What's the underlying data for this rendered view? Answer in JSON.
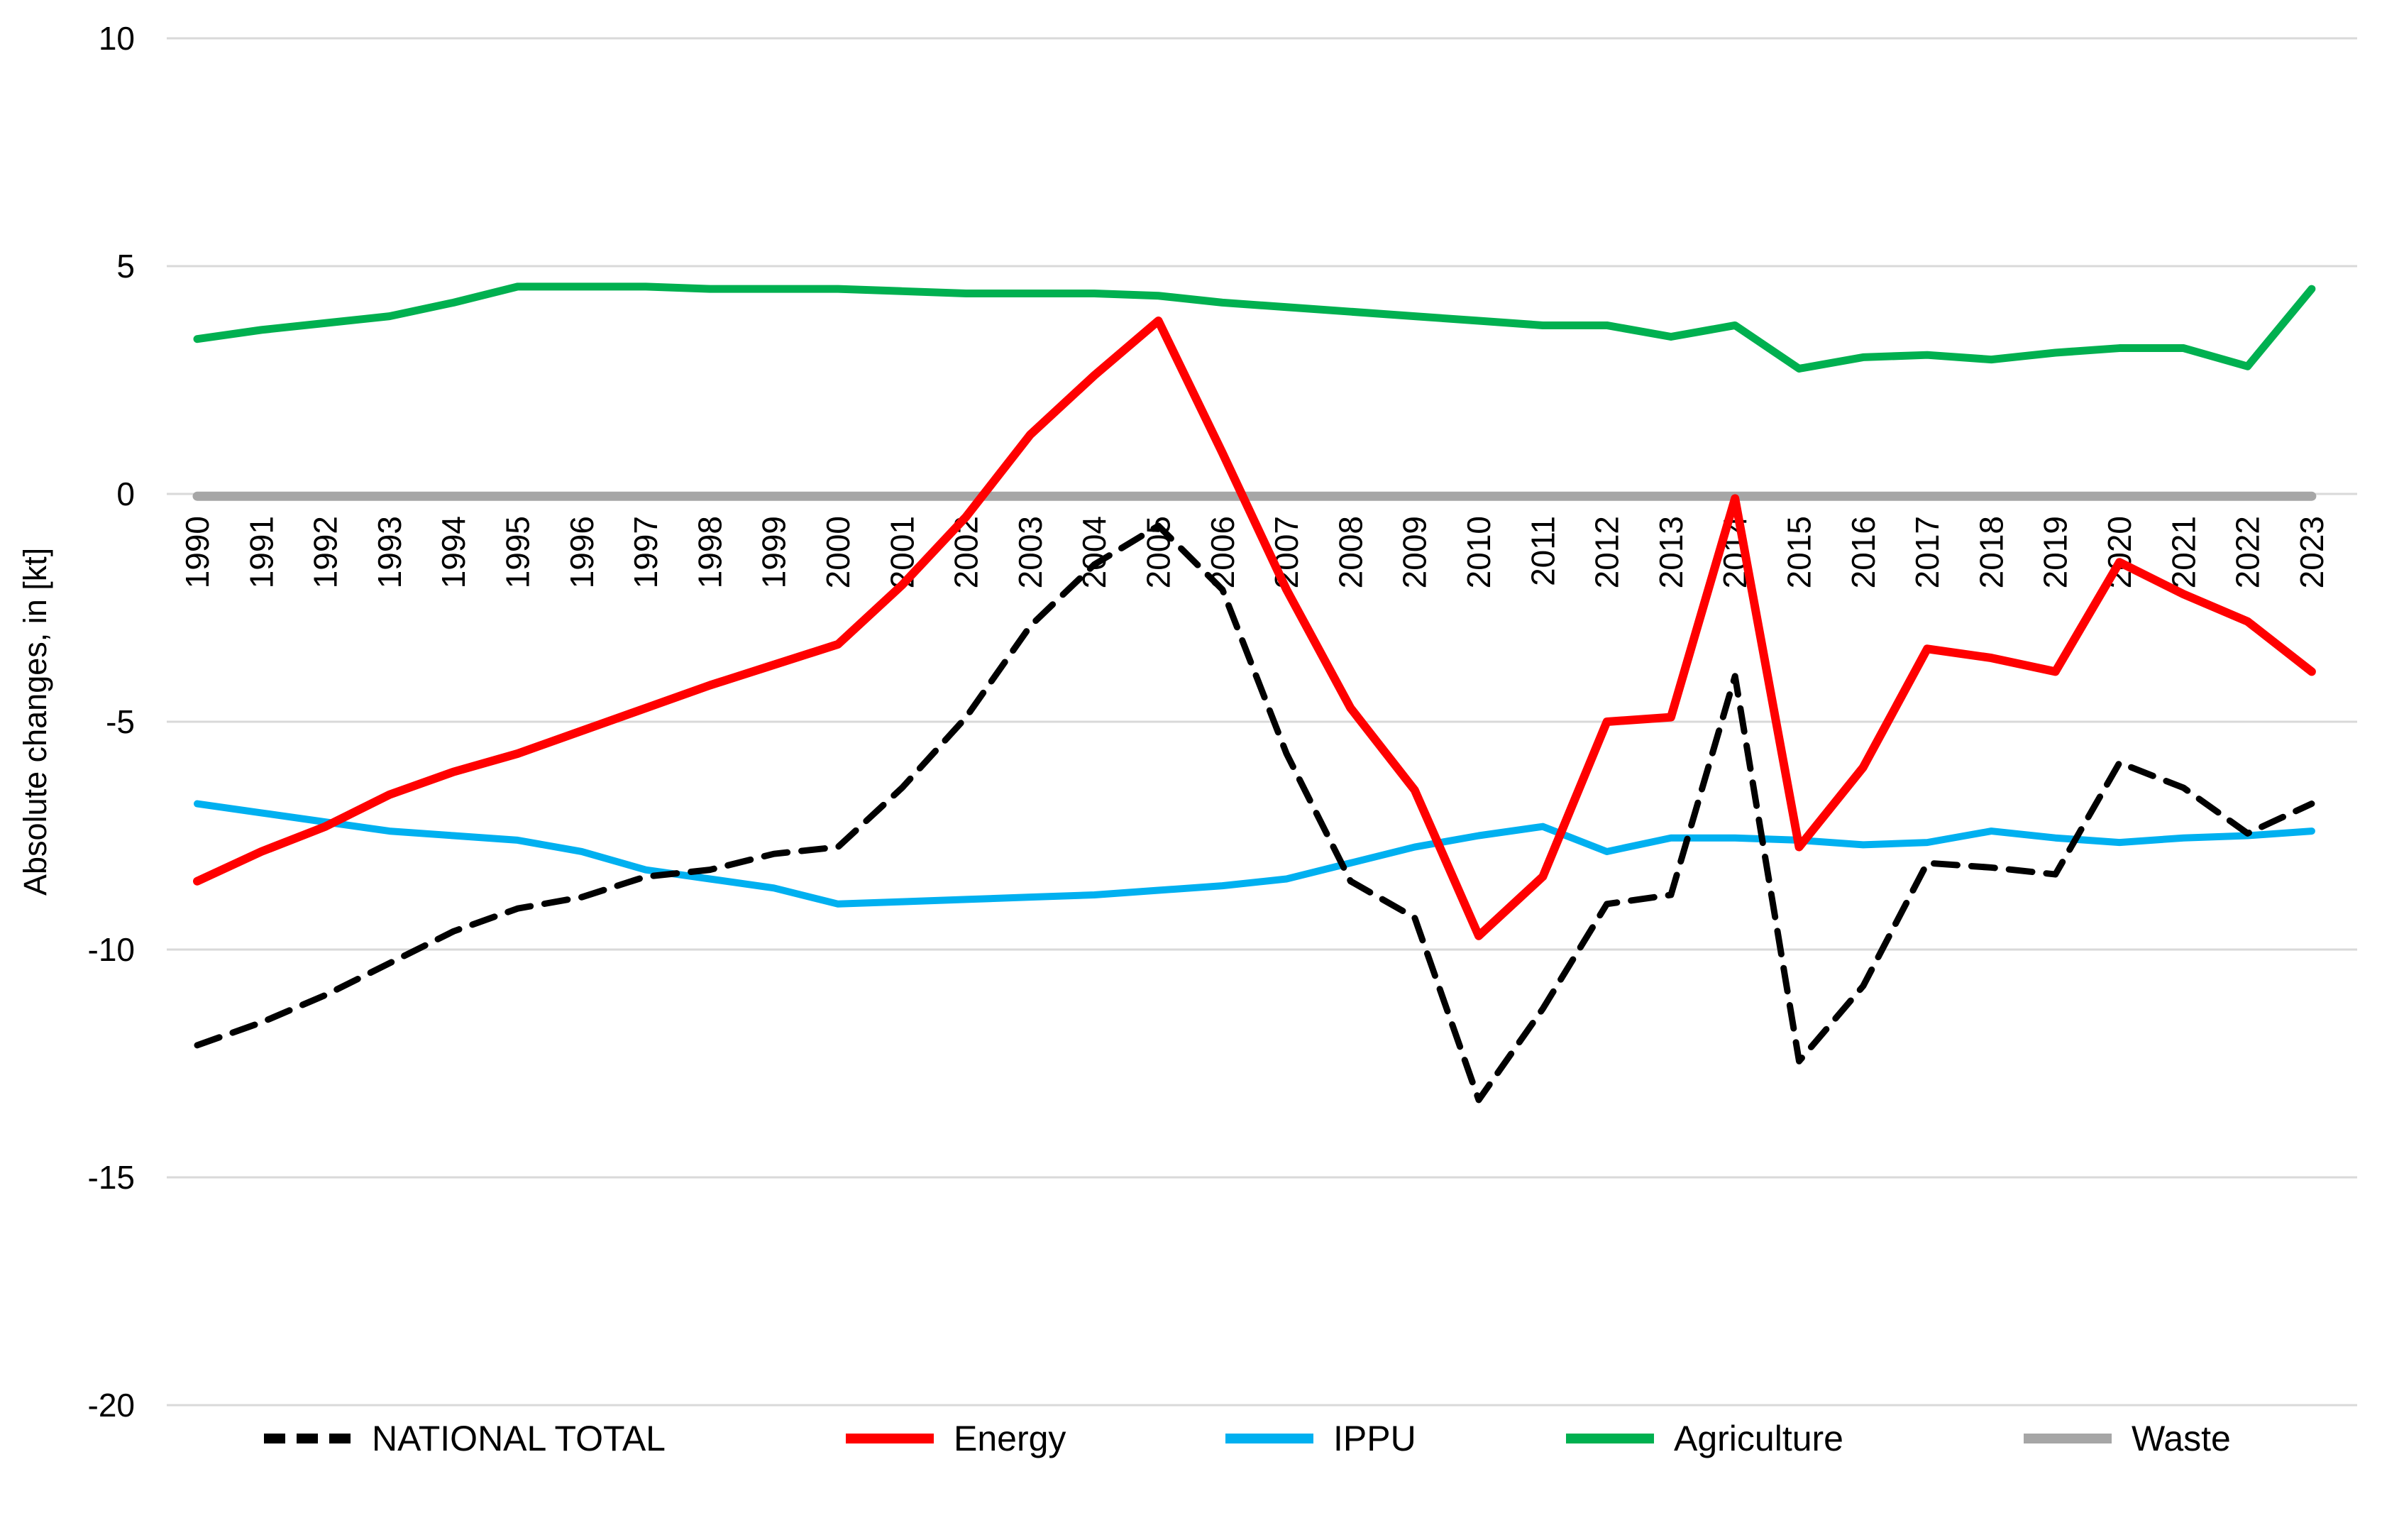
{
  "chart_data": {
    "type": "line",
    "title": "",
    "xlabel": "",
    "ylabel": "Absolute changes, in [kt]",
    "ylim": [
      -20,
      10
    ],
    "yticks": [
      10,
      5,
      0,
      -5,
      -10,
      -15,
      -20
    ],
    "grid": "horizontal",
    "gridline_color": "#D9D9D9",
    "background": "#FFFFFF",
    "legend_position": "bottom",
    "categories": [
      1990,
      1991,
      1992,
      1993,
      1994,
      1995,
      1996,
      1997,
      1998,
      1999,
      2000,
      2001,
      2002,
      2003,
      2004,
      2005,
      2006,
      2007,
      2008,
      2009,
      2010,
      2011,
      2012,
      2013,
      2014,
      2015,
      2016,
      2017,
      2018,
      2019,
      2020,
      2021,
      2022,
      2023
    ],
    "series": [
      {
        "name": "NATIONAL TOTAL",
        "color": "#000000",
        "line_style": "dashed",
        "width": 9,
        "values": [
          -12.1,
          -11.6,
          -11.0,
          -10.3,
          -9.6,
          -9.1,
          -8.85,
          -8.4,
          -8.25,
          -7.9,
          -7.75,
          -6.45,
          -4.9,
          -2.9,
          -1.55,
          -0.7,
          -2.1,
          -5.7,
          -8.5,
          -9.3,
          -13.3,
          -11.3,
          -9.0,
          -8.8,
          -4.0,
          -12.45,
          -10.8,
          -8.1,
          -8.2,
          -8.35,
          -5.9,
          -6.45,
          -7.45,
          -6.8
        ]
      },
      {
        "name": "Energy",
        "color": "#FF0000",
        "line_style": "solid",
        "width": 12,
        "values": [
          -8.5,
          -7.85,
          -7.3,
          -6.6,
          -6.1,
          -5.7,
          -5.2,
          -4.7,
          -4.2,
          -3.75,
          -3.3,
          -2.0,
          -0.5,
          1.3,
          2.6,
          3.8,
          0.9,
          -2.1,
          -4.7,
          -6.5,
          -9.7,
          -8.4,
          -5.0,
          -4.9,
          -0.1,
          -7.75,
          -6.0,
          -3.4,
          -3.6,
          -3.9,
          -1.5,
          -2.2,
          -2.8,
          -3.9
        ]
      },
      {
        "name": "IPPU",
        "color": "#00B0F0",
        "line_style": "solid",
        "width": 10,
        "values": [
          -6.8,
          -7.0,
          -7.2,
          -7.4,
          -7.5,
          -7.6,
          -7.85,
          -8.25,
          -8.45,
          -8.65,
          -9.0,
          -8.95,
          -8.9,
          -8.85,
          -8.8,
          -8.7,
          -8.6,
          -8.45,
          -8.1,
          -7.75,
          -7.5,
          -7.3,
          -7.85,
          -7.55,
          -7.55,
          -7.6,
          -7.7,
          -7.65,
          -7.4,
          -7.55,
          -7.65,
          -7.55,
          -7.5,
          -7.4
        ]
      },
      {
        "name": "Agriculture",
        "color": "#00B050",
        "line_style": "solid",
        "width": 11,
        "values": [
          3.4,
          3.6,
          3.75,
          3.9,
          4.2,
          4.55,
          4.55,
          4.55,
          4.5,
          4.5,
          4.5,
          4.45,
          4.4,
          4.4,
          4.4,
          4.35,
          4.2,
          4.1,
          4.0,
          3.9,
          3.8,
          3.7,
          3.7,
          3.45,
          3.7,
          2.75,
          3.0,
          3.05,
          2.95,
          3.1,
          3.2,
          3.2,
          2.8,
          4.5
        ]
      },
      {
        "name": "Waste",
        "color": "#A6A6A6",
        "line_style": "solid",
        "width": 13,
        "values": [
          -0.05,
          -0.05,
          -0.05,
          -0.05,
          -0.05,
          -0.05,
          -0.05,
          -0.05,
          -0.05,
          -0.05,
          -0.05,
          -0.05,
          -0.05,
          -0.05,
          -0.05,
          -0.05,
          -0.05,
          -0.05,
          -0.05,
          -0.05,
          -0.05,
          -0.05,
          -0.05,
          -0.05,
          -0.05,
          -0.05,
          -0.05,
          -0.05,
          -0.05,
          -0.05,
          -0.05,
          -0.05,
          -0.05,
          -0.05
        ]
      }
    ]
  }
}
